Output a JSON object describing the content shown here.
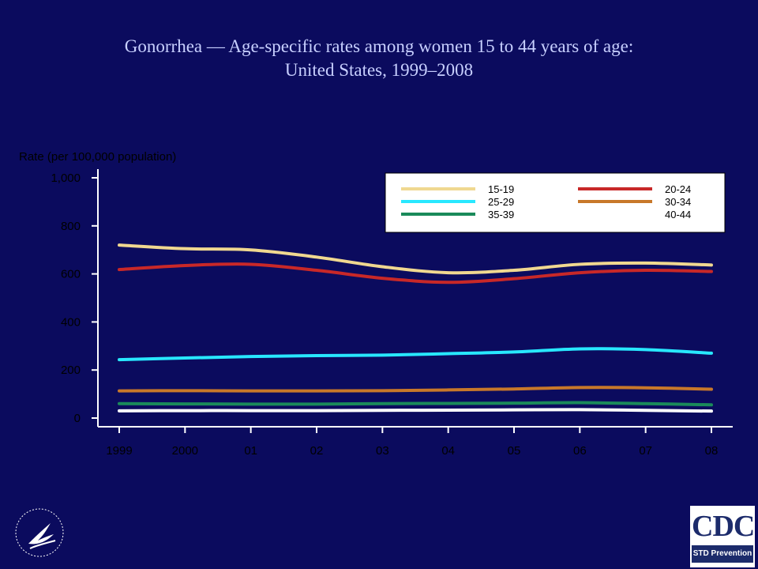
{
  "title": {
    "line1": "Gonorrhea — Age-specific rates among women 15 to 44 years of age:",
    "line2": "United States, 1999–2008"
  },
  "logos": {
    "cdc_text": "CDC",
    "cdc_subtext": "STD Prevention"
  },
  "colors": {
    "background": "#0b0b5e",
    "axis": "#ffffff"
  },
  "chart_data": {
    "type": "line",
    "title": "Gonorrhea — Age-specific rates among women 15 to 44 years of age: United States, 1999–2008",
    "ylabel": "Rate (per 100,000 population)",
    "xlabel": "",
    "x": [
      "1999",
      "2000",
      "01",
      "02",
      "03",
      "04",
      "05",
      "06",
      "07",
      "08"
    ],
    "ylim": [
      0,
      1000
    ],
    "yticks": [
      0,
      200,
      400,
      600,
      800,
      1000
    ],
    "ytick_labels": [
      "0",
      "200",
      "400",
      "600",
      "800",
      "1,000"
    ],
    "grid": false,
    "legend_position": "top-right",
    "series": [
      {
        "name": "15-19",
        "color": "#f0d890",
        "values": [
          720,
          705,
          700,
          670,
          630,
          605,
          615,
          640,
          645,
          637
        ]
      },
      {
        "name": "20-24",
        "color": "#c82828",
        "values": [
          618,
          635,
          640,
          615,
          582,
          565,
          580,
          605,
          615,
          610
        ]
      },
      {
        "name": "25-29",
        "color": "#28e8ff",
        "values": [
          243,
          250,
          256,
          260,
          262,
          268,
          275,
          288,
          285,
          270
        ]
      },
      {
        "name": "30-34",
        "color": "#c8782a",
        "values": [
          113,
          114,
          113,
          113,
          114,
          117,
          121,
          127,
          126,
          120
        ]
      },
      {
        "name": "35-39",
        "color": "#1a8a5a",
        "values": [
          60,
          59,
          58,
          58,
          60,
          61,
          62,
          64,
          60,
          55
        ]
      },
      {
        "name": "40-44",
        "color": "#ffffff",
        "values": [
          30,
          31,
          31,
          31,
          32,
          33,
          34,
          35,
          32,
          29
        ]
      }
    ]
  }
}
